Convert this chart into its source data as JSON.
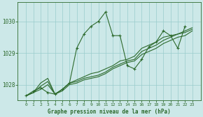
{
  "xlabel": "Graphe pression niveau de la mer (hPa)",
  "x": [
    0,
    1,
    2,
    3,
    4,
    5,
    6,
    7,
    8,
    9,
    10,
    11,
    12,
    13,
    14,
    15,
    16,
    17,
    18,
    19,
    20,
    21,
    22,
    23
  ],
  "line1_jagged": [
    1027.65,
    1027.8,
    1027.9,
    1027.75,
    1027.7,
    1027.85,
    1028.05,
    1029.15,
    1029.6,
    1029.85,
    1030.0,
    1030.3,
    1029.55,
    1029.55,
    1028.6,
    1028.5,
    1028.8,
    1029.2,
    1029.35,
    1029.7,
    1029.55,
    1029.15,
    1029.85,
    null
  ],
  "line2_trend": [
    1027.65,
    1027.75,
    1028.05,
    1028.2,
    1027.7,
    1027.85,
    1028.05,
    1028.15,
    1028.25,
    1028.35,
    1028.4,
    1028.5,
    1028.6,
    1028.75,
    1028.8,
    1028.9,
    1029.15,
    1029.25,
    1029.35,
    1029.5,
    1029.55,
    1029.6,
    1029.7,
    1029.8
  ],
  "line3_trend": [
    1027.65,
    1027.75,
    1027.95,
    1028.1,
    1027.7,
    1027.85,
    1028.05,
    1028.1,
    1028.2,
    1028.25,
    1028.3,
    1028.4,
    1028.55,
    1028.65,
    1028.75,
    1028.8,
    1029.05,
    1029.15,
    1029.25,
    1029.4,
    1029.5,
    1029.6,
    1029.65,
    1029.75
  ],
  "line4_trend": [
    1027.65,
    1027.75,
    1027.85,
    1028.0,
    1027.7,
    1027.8,
    1028.0,
    1028.05,
    1028.15,
    1028.2,
    1028.25,
    1028.35,
    1028.5,
    1028.6,
    1028.7,
    1028.75,
    1028.95,
    1029.05,
    1029.15,
    1029.3,
    1029.4,
    1029.5,
    1029.55,
    1029.7
  ],
  "line_color": "#2d6a2d",
  "bg_color": "#cce8e8",
  "grid_color": "#99cccc",
  "text_color": "#2d6a2d",
  "spine_color": "#2d6a2d",
  "ylim": [
    1027.5,
    1030.6
  ],
  "yticks": [
    1028,
    1029,
    1030
  ],
  "xticks": [
    0,
    1,
    2,
    3,
    4,
    5,
    6,
    7,
    8,
    9,
    10,
    11,
    12,
    13,
    14,
    15,
    16,
    17,
    18,
    19,
    20,
    21,
    22,
    23
  ]
}
